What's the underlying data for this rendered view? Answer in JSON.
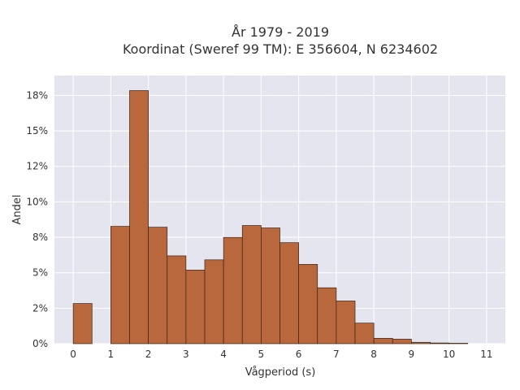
{
  "chart_data": {
    "type": "bar",
    "title_line1": "År 1979 - 2019",
    "title_line2": "Koordinat (Sweref 99 TM): E 356604, N 6234602",
    "xlabel": "Vågperiod (s)",
    "ylabel": "Andel",
    "x_ticks": [
      "0",
      "1",
      "2",
      "3",
      "4",
      "5",
      "6",
      "7",
      "8",
      "9",
      "10",
      "11"
    ],
    "y_ticks": [
      {
        "value": 0,
        "label": "0%"
      },
      {
        "value": 2.5,
        "label": "2%"
      },
      {
        "value": 5,
        "label": "5%"
      },
      {
        "value": 7.5,
        "label": "8%"
      },
      {
        "value": 10,
        "label": "10%"
      },
      {
        "value": 12.5,
        "label": "12%"
      },
      {
        "value": 15,
        "label": "15%"
      },
      {
        "value": 17.5,
        "label": "18%"
      }
    ],
    "xlim": [
      -0.5,
      11.5
    ],
    "ylim": [
      0,
      18.9
    ],
    "bin_width": 0.5,
    "bins": [
      {
        "x0": 0.0,
        "value": 2.83
      },
      {
        "x0": 1.0,
        "value": 8.27
      },
      {
        "x0": 1.5,
        "value": 17.84
      },
      {
        "x0": 2.0,
        "value": 8.21
      },
      {
        "x0": 2.5,
        "value": 6.19
      },
      {
        "x0": 3.0,
        "value": 5.19
      },
      {
        "x0": 3.5,
        "value": 5.91
      },
      {
        "x0": 4.0,
        "value": 7.49
      },
      {
        "x0": 4.5,
        "value": 8.33
      },
      {
        "x0": 5.0,
        "value": 8.16
      },
      {
        "x0": 5.5,
        "value": 7.12
      },
      {
        "x0": 6.0,
        "value": 5.59
      },
      {
        "x0": 6.5,
        "value": 3.94
      },
      {
        "x0": 7.0,
        "value": 3.01
      },
      {
        "x0": 7.5,
        "value": 1.45
      },
      {
        "x0": 8.0,
        "value": 0.38
      },
      {
        "x0": 8.5,
        "value": 0.32
      },
      {
        "x0": 9.0,
        "value": 0.1
      },
      {
        "x0": 9.5,
        "value": 0.05
      },
      {
        "x0": 10.0,
        "value": 0.03
      }
    ],
    "grid": true,
    "colors": {
      "plot_bg": "#e5e5f0",
      "grid": "#ffffff",
      "bar_fill": "#b8683c",
      "bar_stroke": "#3a2416"
    }
  }
}
